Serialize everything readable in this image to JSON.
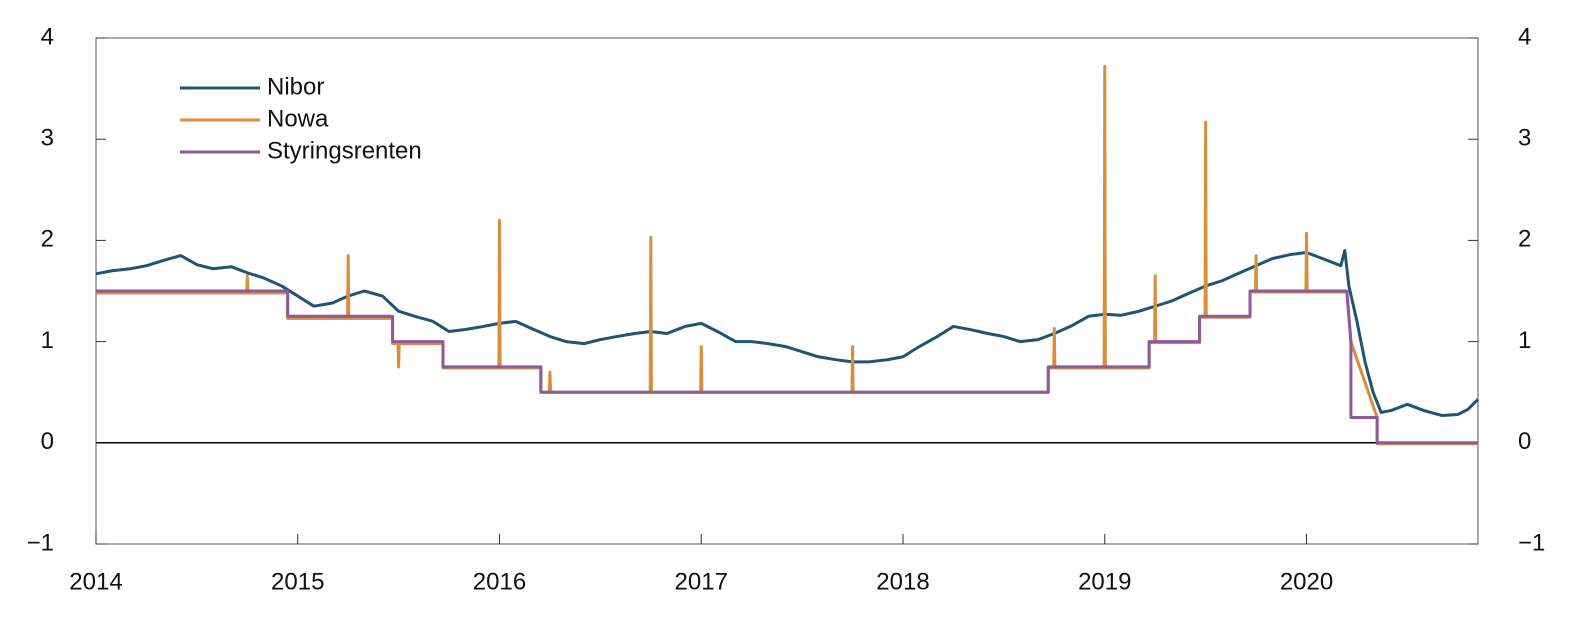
{
  "chart_data": {
    "type": "line",
    "xlim": [
      2014,
      2020.85
    ],
    "xticks": [
      2014,
      2015,
      2016,
      2017,
      2018,
      2019,
      2020
    ],
    "ylim": [
      -1,
      4
    ],
    "yticks": [
      {
        "value": -1,
        "label": "−1"
      },
      0,
      1,
      2,
      3,
      4
    ],
    "y2lim": [
      -1,
      4
    ],
    "y2ticks": [
      {
        "value": -1,
        "label": "−1"
      },
      0,
      1,
      2,
      3,
      4
    ],
    "legend": "upper left",
    "series": [
      {
        "name": "Nibor",
        "color": "#1f5475",
        "x": [
          2014.0,
          2014.08,
          2014.17,
          2014.25,
          2014.33,
          2014.42,
          2014.5,
          2014.58,
          2014.67,
          2014.75,
          2014.83,
          2014.92,
          2015.0,
          2015.08,
          2015.17,
          2015.25,
          2015.33,
          2015.42,
          2015.5,
          2015.58,
          2015.67,
          2015.75,
          2015.83,
          2015.92,
          2016.0,
          2016.08,
          2016.17,
          2016.25,
          2016.33,
          2016.42,
          2016.5,
          2016.58,
          2016.67,
          2016.75,
          2016.83,
          2016.92,
          2017.0,
          2017.08,
          2017.17,
          2017.25,
          2017.33,
          2017.42,
          2017.5,
          2017.58,
          2017.67,
          2017.75,
          2017.83,
          2017.92,
          2018.0,
          2018.08,
          2018.17,
          2018.25,
          2018.33,
          2018.42,
          2018.5,
          2018.58,
          2018.67,
          2018.75,
          2018.83,
          2018.92,
          2019.0,
          2019.08,
          2019.17,
          2019.25,
          2019.33,
          2019.42,
          2019.5,
          2019.58,
          2019.67,
          2019.75,
          2019.83,
          2019.92,
          2020.0,
          2020.08,
          2020.17,
          2020.19,
          2020.21,
          2020.25,
          2020.29,
          2020.33,
          2020.37,
          2020.42,
          2020.5,
          2020.58,
          2020.67,
          2020.75,
          2020.8,
          2020.85
        ],
        "values": [
          1.67,
          1.7,
          1.72,
          1.75,
          1.8,
          1.85,
          1.76,
          1.72,
          1.74,
          1.68,
          1.63,
          1.55,
          1.45,
          1.35,
          1.38,
          1.45,
          1.5,
          1.45,
          1.3,
          1.25,
          1.2,
          1.1,
          1.12,
          1.15,
          1.18,
          1.2,
          1.12,
          1.05,
          1.0,
          0.98,
          1.02,
          1.05,
          1.08,
          1.1,
          1.08,
          1.15,
          1.18,
          1.1,
          1.0,
          1.0,
          0.98,
          0.95,
          0.9,
          0.85,
          0.82,
          0.8,
          0.8,
          0.82,
          0.85,
          0.95,
          1.05,
          1.15,
          1.12,
          1.08,
          1.05,
          1.0,
          1.02,
          1.08,
          1.15,
          1.25,
          1.27,
          1.26,
          1.3,
          1.35,
          1.4,
          1.48,
          1.55,
          1.6,
          1.68,
          1.75,
          1.82,
          1.86,
          1.88,
          1.82,
          1.75,
          1.9,
          1.55,
          1.2,
          0.8,
          0.5,
          0.3,
          0.32,
          0.38,
          0.32,
          0.27,
          0.28,
          0.33,
          0.43
        ]
      },
      {
        "name": "Nowa",
        "color": "#d98e3a",
        "x": [
          2014.0,
          2014.747,
          2014.75,
          2014.753,
          2014.95,
          2014.95,
          2015.247,
          2015.25,
          2015.253,
          2015.47,
          2015.47,
          2015.497,
          2015.5,
          2015.503,
          2015.72,
          2015.72,
          2015.997,
          2016.0,
          2016.003,
          2016.205,
          2016.205,
          2016.247,
          2016.25,
          2016.253,
          2016.747,
          2016.75,
          2016.753,
          2016.997,
          2017.0,
          2017.003,
          2017.747,
          2017.75,
          2017.753,
          2018.72,
          2018.72,
          2018.747,
          2018.75,
          2018.753,
          2018.997,
          2019.0,
          2019.003,
          2019.22,
          2019.22,
          2019.247,
          2019.25,
          2019.253,
          2019.47,
          2019.47,
          2019.497,
          2019.5,
          2019.503,
          2019.72,
          2019.72,
          2019.747,
          2019.75,
          2019.753,
          2019.997,
          2020.0,
          2020.003,
          2020.2,
          2020.22,
          2020.35,
          2020.35,
          2020.85
        ],
        "values": [
          1.48,
          1.48,
          1.65,
          1.48,
          1.48,
          1.23,
          1.23,
          1.85,
          1.23,
          1.23,
          0.98,
          0.98,
          0.75,
          0.98,
          0.98,
          0.74,
          0.74,
          2.2,
          0.74,
          0.74,
          0.5,
          0.5,
          0.7,
          0.5,
          0.5,
          2.03,
          0.5,
          0.5,
          0.95,
          0.5,
          0.5,
          0.95,
          0.5,
          0.5,
          0.74,
          0.74,
          1.13,
          0.74,
          0.74,
          3.72,
          0.74,
          0.74,
          0.99,
          0.99,
          1.65,
          0.99,
          0.99,
          1.24,
          1.24,
          3.17,
          1.24,
          1.24,
          1.49,
          1.49,
          1.85,
          1.49,
          1.49,
          2.07,
          1.49,
          1.49,
          1.0,
          0.25,
          -0.01,
          -0.01
        ]
      },
      {
        "name": "Styringsrenten",
        "color": "#8e5a9e",
        "x": [
          2014.0,
          2014.95,
          2014.95,
          2015.47,
          2015.47,
          2015.72,
          2015.72,
          2016.205,
          2016.205,
          2018.72,
          2018.72,
          2019.22,
          2019.22,
          2019.47,
          2019.47,
          2019.72,
          2019.72,
          2020.2,
          2020.22,
          2020.22,
          2020.35,
          2020.35,
          2020.85
        ],
        "values": [
          1.5,
          1.5,
          1.25,
          1.25,
          1.0,
          1.0,
          0.75,
          0.75,
          0.5,
          0.5,
          0.75,
          0.75,
          1.0,
          1.0,
          1.25,
          1.25,
          1.5,
          1.5,
          1.0,
          0.25,
          0.25,
          0.0,
          0.0
        ]
      }
    ]
  }
}
